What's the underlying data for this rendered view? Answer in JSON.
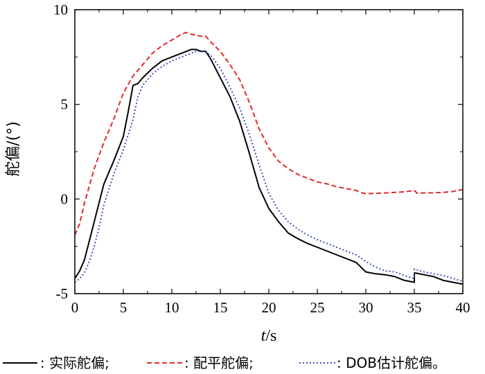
{
  "chart_data": {
    "type": "line",
    "title": "",
    "xlabel_italic": "t",
    "xlabel_rest": "/s",
    "ylabel": "舵偏/(°)",
    "xlim": [
      0,
      40
    ],
    "ylim": [
      -5,
      10
    ],
    "xticks": [
      "0",
      "5",
      "10",
      "15",
      "20",
      "25",
      "30",
      "35",
      "40"
    ],
    "yticks": [
      "10",
      "5",
      "0",
      "-5"
    ],
    "grid": false,
    "legend_position": "bottom",
    "legend": [
      {
        "marker": "———",
        "label": ": 实际舵偏;"
      },
      {
        "marker": "------",
        "label": ": 配平舵偏;"
      },
      {
        "marker": "·······",
        "label": ": DOB估计舵偏。"
      }
    ],
    "series": [
      {
        "name": "实际舵偏",
        "color": "#000000",
        "dash": "solid",
        "x": [
          0,
          0.5,
          1,
          1.5,
          2,
          2.5,
          3,
          4,
          5,
          5.5,
          6,
          6.5,
          7,
          8,
          9,
          10,
          11,
          12,
          12.5,
          13,
          13.5,
          14,
          15,
          16,
          17,
          18,
          19,
          20,
          21,
          22,
          23,
          24,
          25,
          26,
          27,
          28,
          29,
          30,
          31,
          32,
          33,
          34,
          35,
          35.01,
          36,
          37,
          38,
          39,
          40
        ],
        "y": [
          -4.2,
          -3.8,
          -3.2,
          -2.2,
          -1.2,
          -0.2,
          0.8,
          2.0,
          3.3,
          4.6,
          6.0,
          6.1,
          6.4,
          6.9,
          7.3,
          7.5,
          7.7,
          7.9,
          7.9,
          7.8,
          7.8,
          7.4,
          6.4,
          5.4,
          4.1,
          2.4,
          0.6,
          -0.5,
          -1.2,
          -1.8,
          -2.1,
          -2.35,
          -2.55,
          -2.75,
          -2.95,
          -3.15,
          -3.35,
          -3.85,
          -3.95,
          -4.0,
          -4.1,
          -4.3,
          -4.4,
          -3.9,
          -4.0,
          -4.1,
          -4.3,
          -4.4,
          -4.5
        ]
      },
      {
        "name": "配平舵偏",
        "color": "#e3262a",
        "dash": "dashed",
        "x": [
          0,
          0.5,
          1,
          1.5,
          2,
          3,
          4,
          5,
          6,
          7,
          8,
          9,
          10,
          11,
          11.5,
          12,
          13,
          13.5,
          14,
          15,
          16,
          17,
          18,
          19,
          20,
          21,
          22,
          23,
          24,
          25,
          26,
          27,
          28,
          29,
          29.5,
          30,
          31,
          32,
          33,
          34,
          35,
          35.3,
          36,
          37,
          38,
          39,
          40
        ],
        "y": [
          -1.9,
          -1.3,
          -0.2,
          0.7,
          1.6,
          3.0,
          4.2,
          5.6,
          6.5,
          7.1,
          7.7,
          8.1,
          8.4,
          8.7,
          8.8,
          8.7,
          8.6,
          8.6,
          8.3,
          7.8,
          7.1,
          6.3,
          5.1,
          3.7,
          2.7,
          2.0,
          1.6,
          1.3,
          1.1,
          0.9,
          0.8,
          0.65,
          0.55,
          0.45,
          0.35,
          0.28,
          0.3,
          0.32,
          0.35,
          0.38,
          0.45,
          0.3,
          0.32,
          0.33,
          0.35,
          0.4,
          0.5
        ]
      },
      {
        "name": "DOB估计舵偏",
        "color": "#3a4fb0",
        "dash": "dotted",
        "x": [
          0,
          0.5,
          1,
          1.5,
          2,
          2.5,
          3,
          4,
          5,
          6,
          6.5,
          7,
          8,
          9,
          10,
          11,
          12,
          12.5,
          13,
          13.5,
          14,
          15,
          16,
          17,
          18,
          19,
          20,
          21,
          22,
          23,
          24,
          25,
          26,
          27,
          28,
          29,
          30,
          31,
          32,
          33,
          34,
          35,
          35.01,
          36,
          37,
          38,
          39,
          40
        ],
        "y": [
          -4.4,
          -4.2,
          -3.9,
          -3.3,
          -2.5,
          -1.5,
          -0.3,
          1.3,
          2.6,
          4.2,
          5.4,
          6.0,
          6.6,
          7.0,
          7.3,
          7.5,
          7.7,
          7.8,
          7.8,
          7.75,
          7.6,
          6.9,
          5.9,
          4.8,
          3.4,
          1.8,
          0.3,
          -0.6,
          -1.2,
          -1.6,
          -1.9,
          -2.15,
          -2.35,
          -2.55,
          -2.75,
          -2.95,
          -3.3,
          -3.6,
          -3.8,
          -3.85,
          -4.05,
          -4.2,
          -3.7,
          -3.85,
          -3.95,
          -4.05,
          -4.2,
          -4.35
        ]
      }
    ]
  }
}
